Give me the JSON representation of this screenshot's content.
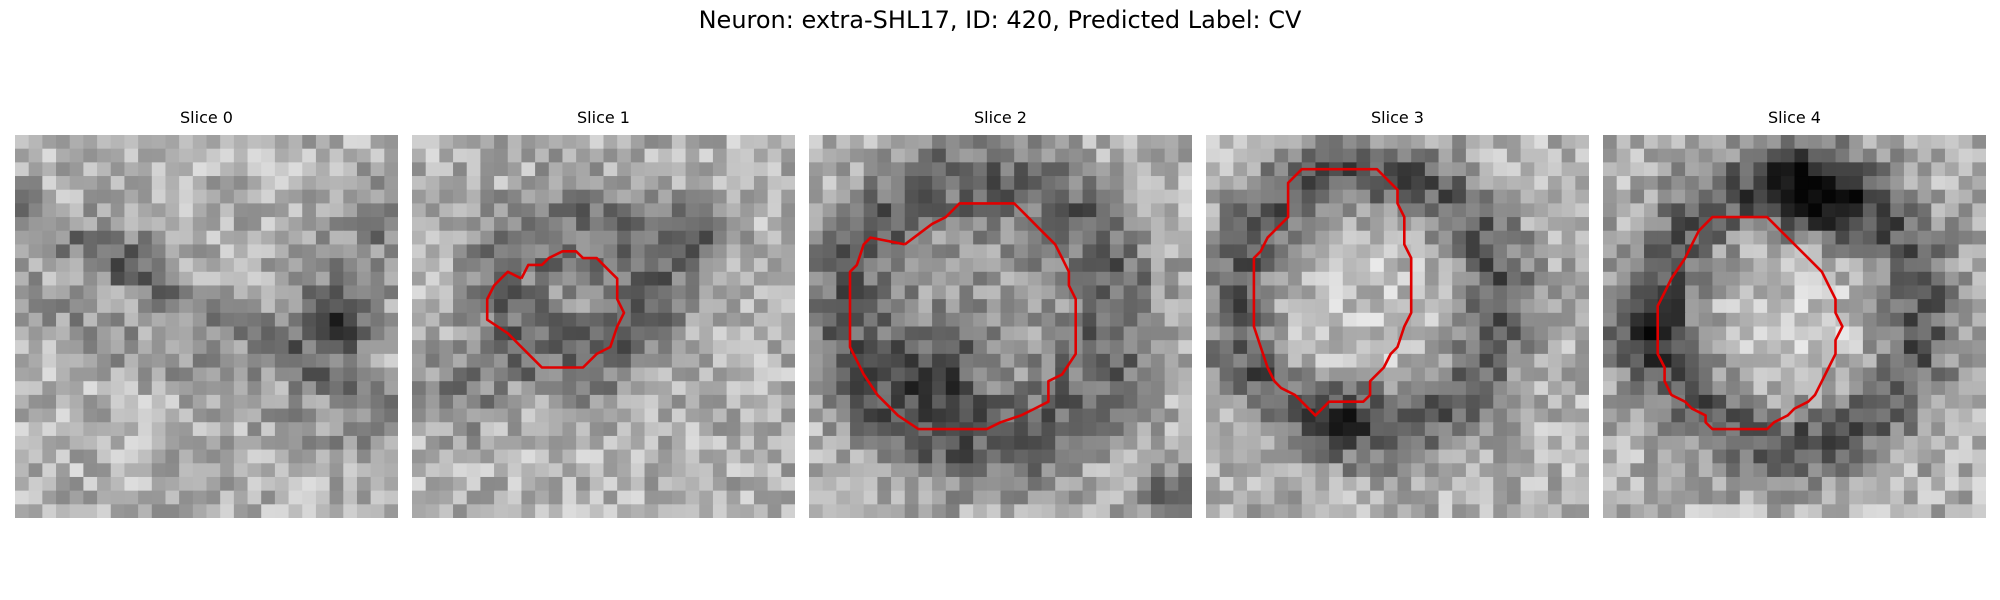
{
  "figure": {
    "title": "Neuron: extra-SHL17, ID: 420, Predicted Label: CV",
    "contour_color": "#e00000",
    "colormap": "gray",
    "panels": [
      {
        "title": "Slice 0",
        "has_contour": false
      },
      {
        "title": "Slice 1",
        "has_contour": true
      },
      {
        "title": "Slice 2",
        "has_contour": true
      },
      {
        "title": "Slice 3",
        "has_contour": true
      },
      {
        "title": "Slice 4",
        "has_contour": true
      }
    ]
  }
}
